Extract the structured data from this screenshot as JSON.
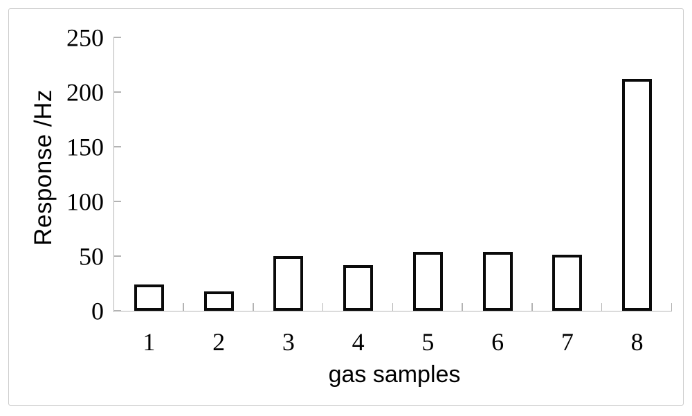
{
  "chart_data": {
    "type": "bar",
    "title": "",
    "categories": [
      "1",
      "2",
      "3",
      "4",
      "5",
      "6",
      "7",
      "8"
    ],
    "values": [
      24,
      18,
      50,
      42,
      54,
      54,
      51,
      212
    ],
    "xlabel": "gas samples",
    "ylabel": "Response /Hz",
    "ylim": [
      0,
      250
    ],
    "yticks": [
      0,
      50,
      100,
      150,
      200,
      250
    ],
    "grid": false,
    "legend": "none",
    "tick_style": "inside",
    "colors": {
      "bar_fill": "#ffffff",
      "bar_stroke": "#0a0a0a",
      "axis": "#b3b3b3",
      "frame_border": "#c9c9c9",
      "text": "#000000",
      "background": "#ffffff"
    }
  }
}
